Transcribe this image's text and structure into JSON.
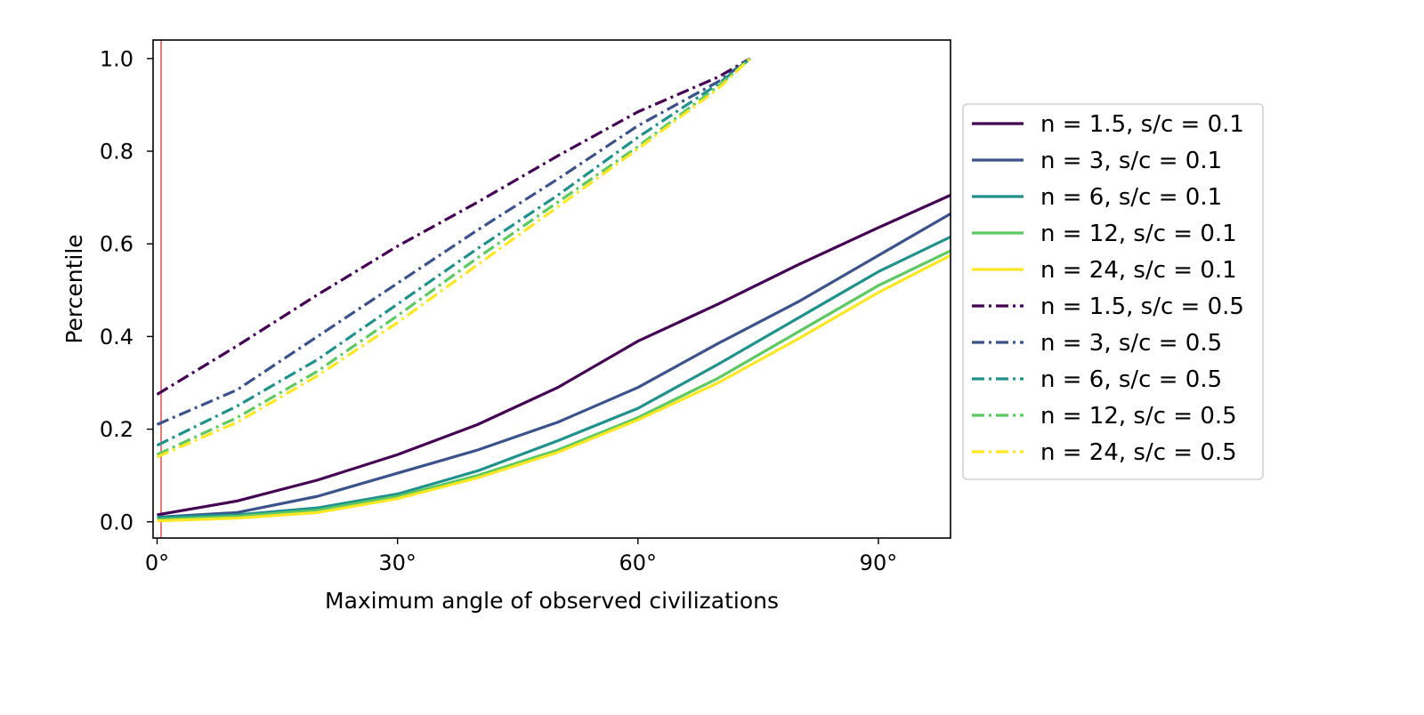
{
  "chart_data": {
    "type": "line",
    "title": "",
    "xlabel": "Maximum angle of observed civilizations",
    "ylabel": "Percentile",
    "xlim": [
      -0.5,
      99
    ],
    "ylim": [
      -0.035,
      1.04
    ],
    "xticks": [
      {
        "value": 0,
        "label": "0°"
      },
      {
        "value": 30,
        "label": "30°"
      },
      {
        "value": 60,
        "label": "60°"
      },
      {
        "value": 90,
        "label": "90°"
      }
    ],
    "yticks": [
      {
        "value": 0.0,
        "label": "0.0"
      },
      {
        "value": 0.2,
        "label": "0.2"
      },
      {
        "value": 0.4,
        "label": "0.4"
      },
      {
        "value": 0.6,
        "label": "0.6"
      },
      {
        "value": 0.8,
        "label": "0.8"
      },
      {
        "value": 1.0,
        "label": "1.0"
      }
    ],
    "grid": false,
    "legend_position": "right, outside plot",
    "reference_line": {
      "x": 0.5,
      "color": "#d62728"
    },
    "series": [
      {
        "name": "n = 1.5, s/c = 0.1",
        "color": "#440154",
        "style": "solid",
        "x": [
          0,
          10,
          20,
          30,
          40,
          50,
          60,
          70,
          80,
          90,
          99
        ],
        "y": [
          0.015,
          0.045,
          0.09,
          0.145,
          0.21,
          0.29,
          0.39,
          0.47,
          0.555,
          0.635,
          0.705
        ]
      },
      {
        "name": "n = 3, s/c = 0.1",
        "color": "#3b528b",
        "style": "solid",
        "x": [
          0,
          10,
          20,
          30,
          40,
          50,
          60,
          70,
          80,
          90,
          99
        ],
        "y": [
          0.01,
          0.02,
          0.055,
          0.105,
          0.155,
          0.215,
          0.29,
          0.385,
          0.475,
          0.575,
          0.665
        ]
      },
      {
        "name": "n = 6, s/c = 0.1",
        "color": "#21918c",
        "style": "solid",
        "x": [
          0,
          10,
          20,
          30,
          40,
          50,
          60,
          70,
          80,
          90,
          99
        ],
        "y": [
          0.01,
          0.015,
          0.03,
          0.06,
          0.11,
          0.175,
          0.245,
          0.34,
          0.44,
          0.54,
          0.615
        ]
      },
      {
        "name": "n = 12, s/c = 0.1",
        "color": "#5ec962",
        "style": "solid",
        "x": [
          0,
          10,
          20,
          30,
          40,
          50,
          60,
          70,
          80,
          90,
          99
        ],
        "y": [
          0.005,
          0.012,
          0.025,
          0.055,
          0.1,
          0.155,
          0.225,
          0.31,
          0.41,
          0.51,
          0.585
        ]
      },
      {
        "name": "n = 24, s/c = 0.1",
        "color": "#fde725",
        "style": "solid",
        "x": [
          0,
          10,
          20,
          30,
          40,
          50,
          60,
          70,
          80,
          90,
          99
        ],
        "y": [
          0.002,
          0.008,
          0.02,
          0.05,
          0.095,
          0.15,
          0.22,
          0.3,
          0.395,
          0.495,
          0.575
        ]
      },
      {
        "name": "n = 1.5, s/c = 0.5",
        "color": "#440154",
        "style": "dashdot",
        "x": [
          0,
          10,
          20,
          30,
          40,
          50,
          60,
          70,
          74
        ],
        "y": [
          0.275,
          0.38,
          0.49,
          0.595,
          0.69,
          0.79,
          0.885,
          0.96,
          1.0
        ]
      },
      {
        "name": "n = 3, s/c = 0.5",
        "color": "#3b528b",
        "style": "dashdot",
        "x": [
          0,
          10,
          20,
          30,
          40,
          50,
          60,
          70,
          74
        ],
        "y": [
          0.21,
          0.285,
          0.4,
          0.515,
          0.63,
          0.74,
          0.855,
          0.95,
          1.0
        ]
      },
      {
        "name": "n = 6, s/c = 0.5",
        "color": "#21918c",
        "style": "dashdot",
        "x": [
          0,
          10,
          20,
          30,
          40,
          50,
          60,
          70,
          74
        ],
        "y": [
          0.165,
          0.25,
          0.35,
          0.47,
          0.59,
          0.705,
          0.83,
          0.945,
          1.0
        ]
      },
      {
        "name": "n = 12, s/c = 0.5",
        "color": "#5ec962",
        "style": "dashdot",
        "x": [
          0,
          10,
          20,
          30,
          40,
          50,
          60,
          70,
          74
        ],
        "y": [
          0.145,
          0.225,
          0.325,
          0.445,
          0.57,
          0.69,
          0.81,
          0.94,
          1.0
        ]
      },
      {
        "name": "n = 24, s/c = 0.5",
        "color": "#fde725",
        "style": "dashdot",
        "x": [
          0,
          10,
          20,
          30,
          40,
          50,
          60,
          70,
          74
        ],
        "y": [
          0.14,
          0.215,
          0.315,
          0.43,
          0.555,
          0.68,
          0.805,
          0.935,
          1.0
        ]
      }
    ]
  }
}
